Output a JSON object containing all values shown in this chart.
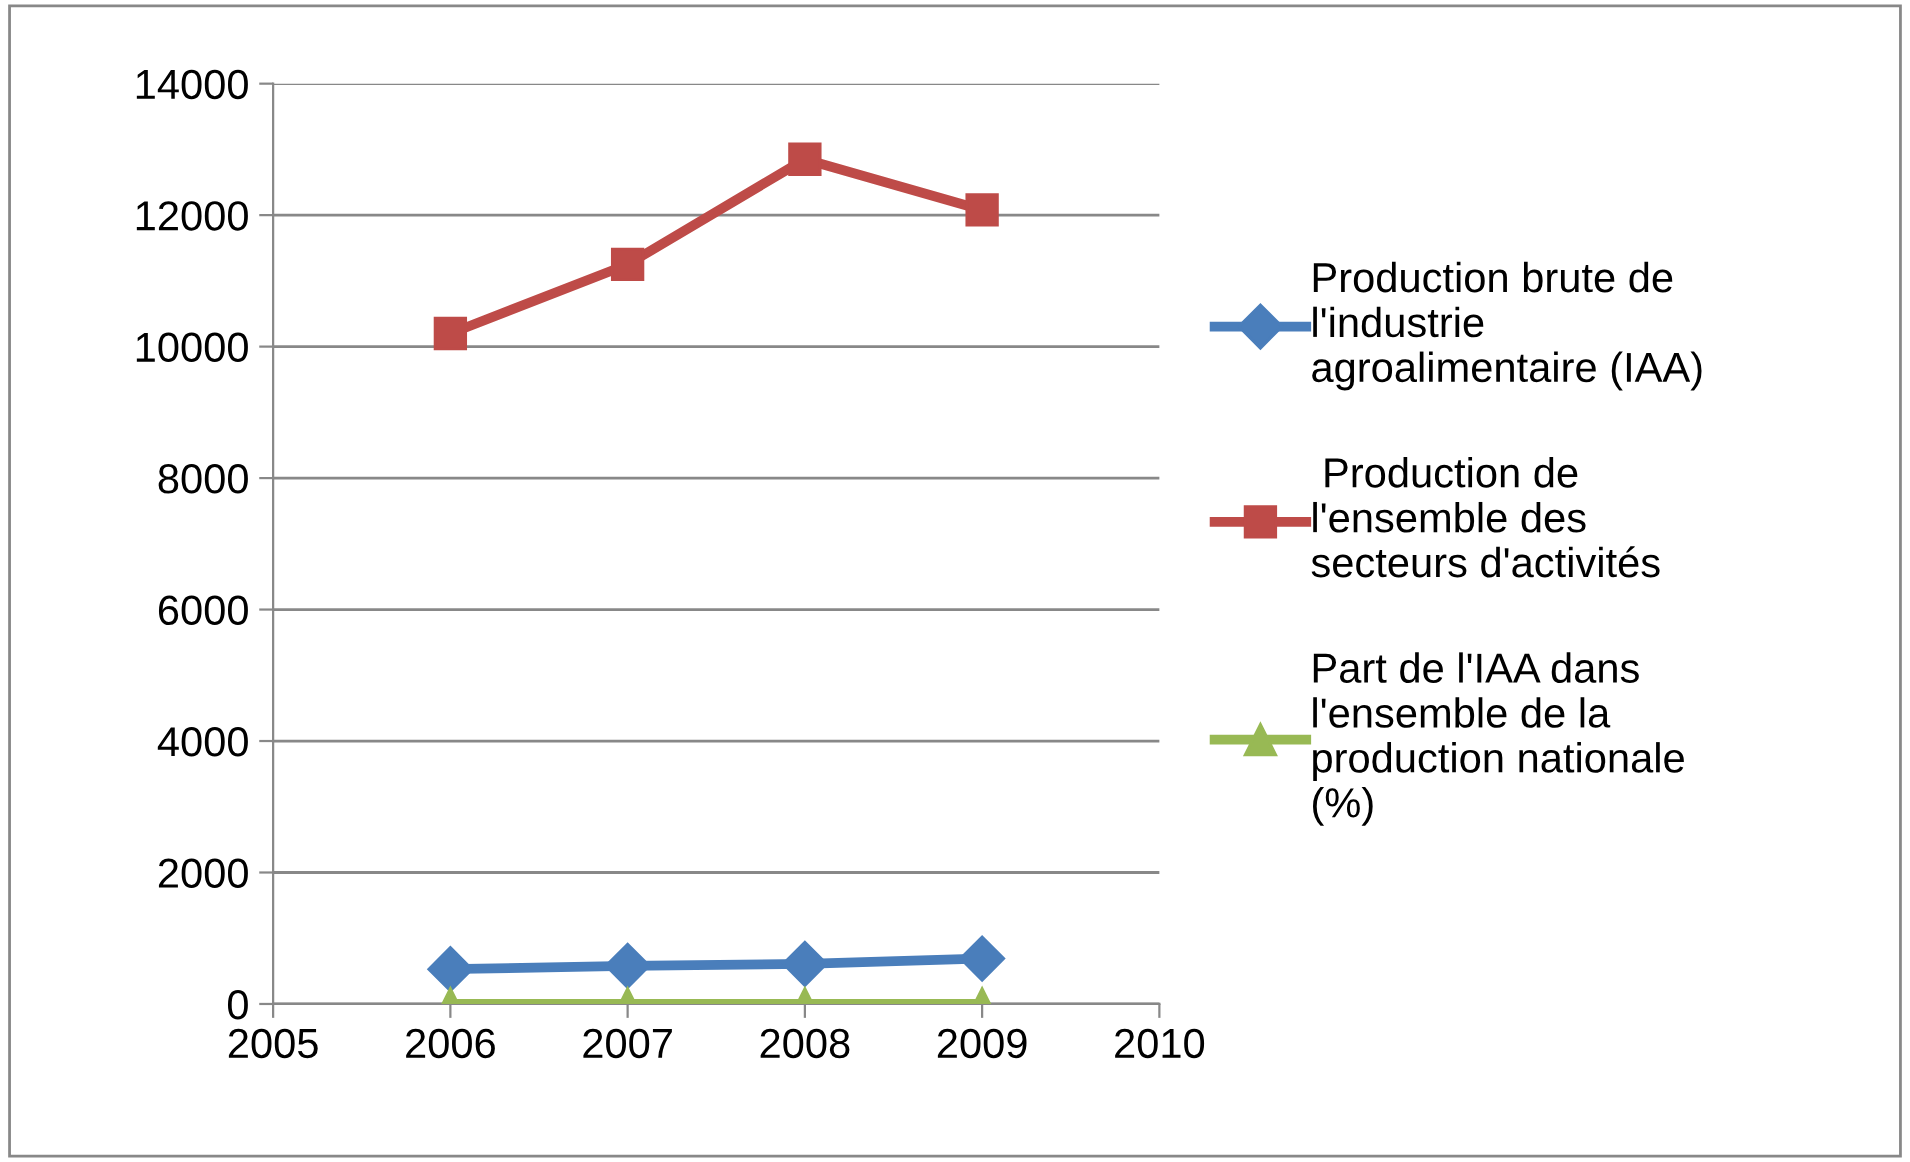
{
  "chart_data": {
    "type": "line",
    "x": [
      2006,
      2007,
      2008,
      2009
    ],
    "series": [
      {
        "name": "Production brute de\nl'industrie\nagroalimentaire (IAA)",
        "color": "#4a7ebb",
        "values": [
          530,
          580,
          610,
          690
        ],
        "marker": "diamond"
      },
      {
        "name": " Production de\nl'ensemble des\nsecteurs d'activités",
        "color": "#be4b48",
        "values": [
          10200,
          11250,
          12850,
          12080
        ],
        "marker": "square"
      },
      {
        "name": "Part de l'IAA dans\nl'ensemble de la\nproduction nationale\n(%)",
        "color": "#98b954",
        "values": [
          0,
          0,
          0,
          0
        ],
        "marker": "triangle"
      }
    ],
    "xlim": [
      2005,
      2010
    ],
    "xticks": [
      2005,
      2006,
      2007,
      2008,
      2009,
      2010
    ],
    "ylim": [
      0,
      14000
    ],
    "yticks": [
      0,
      2000,
      4000,
      6000,
      8000,
      10000,
      12000,
      14000
    ],
    "grid": "y",
    "legend": "right",
    "line_style": "solid"
  }
}
